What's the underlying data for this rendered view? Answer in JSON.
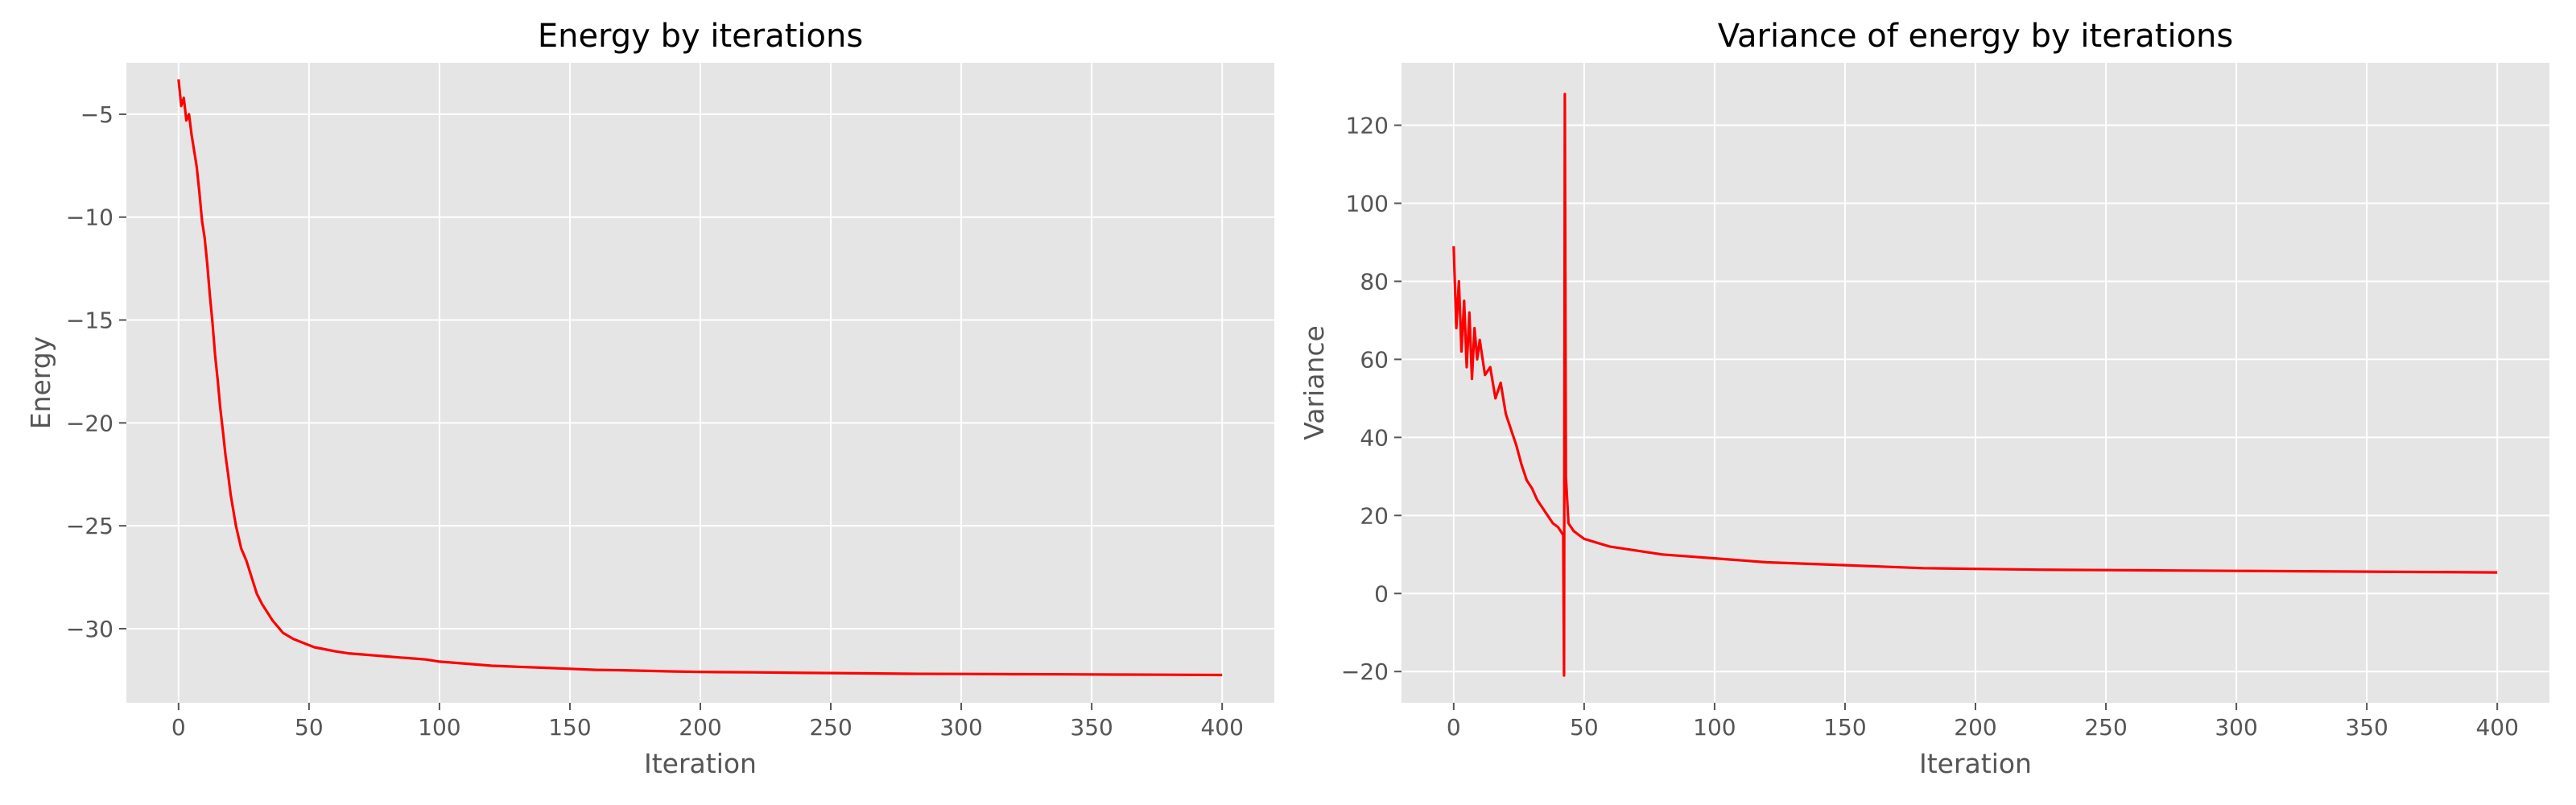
{
  "chart_data": [
    {
      "type": "line",
      "title": "Energy by iterations",
      "xlabel": "Iteration",
      "ylabel": "Energy",
      "xlim": [
        -20,
        420
      ],
      "ylim": [
        -33.6,
        -2.5
      ],
      "xticks": [
        0,
        50,
        100,
        150,
        200,
        250,
        300,
        350,
        400
      ],
      "yticks": [
        -30,
        -25,
        -20,
        -15,
        -10,
        -5
      ],
      "grid": true,
      "color": "#ff0000",
      "series": [
        {
          "x": [
            0,
            1,
            2,
            3,
            4,
            5,
            6,
            7,
            8,
            9,
            10,
            11,
            12,
            13,
            14,
            15,
            16,
            17,
            18,
            19,
            20,
            22,
            24,
            26,
            28,
            30,
            32,
            34,
            36,
            38,
            40,
            44,
            48,
            52,
            56,
            60,
            65,
            70,
            75,
            80,
            85,
            90,
            95,
            100,
            110,
            120,
            130,
            140,
            150,
            160,
            170,
            180,
            190,
            200,
            220,
            240,
            260,
            280,
            300,
            320,
            340,
            360,
            380,
            400
          ],
          "y": [
            -3.3,
            -4.6,
            -4.2,
            -5.3,
            -5.0,
            -6.0,
            -6.8,
            -7.6,
            -8.8,
            -10.2,
            -11.0,
            -12.3,
            -13.8,
            -15.1,
            -16.7,
            -17.9,
            -19.3,
            -20.4,
            -21.6,
            -22.5,
            -23.5,
            -25.0,
            -26.1,
            -26.7,
            -27.5,
            -28.3,
            -28.8,
            -29.2,
            -29.6,
            -29.9,
            -30.2,
            -30.5,
            -30.7,
            -30.9,
            -31.0,
            -31.1,
            -31.2,
            -31.25,
            -31.3,
            -31.35,
            -31.4,
            -31.45,
            -31.5,
            -31.6,
            -31.7,
            -31.8,
            -31.85,
            -31.9,
            -31.95,
            -32.0,
            -32.02,
            -32.05,
            -32.08,
            -32.1,
            -32.12,
            -32.15,
            -32.17,
            -32.19,
            -32.2,
            -32.21,
            -32.22,
            -32.23,
            -32.24,
            -32.25
          ]
        }
      ]
    },
    {
      "type": "line",
      "title": "Variance of energy by iterations",
      "xlabel": "Iteration",
      "ylabel": "Variance",
      "xlim": [
        -20,
        420
      ],
      "ylim": [
        -28,
        136
      ],
      "xticks": [
        0,
        50,
        100,
        150,
        200,
        250,
        300,
        350,
        400
      ],
      "yticks": [
        -20,
        0,
        20,
        40,
        60,
        80,
        100,
        120
      ],
      "grid": true,
      "color": "#ff0000",
      "series": [
        {
          "x": [
            0,
            1,
            2,
            3,
            4,
            5,
            6,
            7,
            8,
            9,
            10,
            12,
            14,
            16,
            18,
            20,
            22,
            24,
            26,
            28,
            30,
            32,
            34,
            36,
            38,
            40,
            41,
            42,
            42.3,
            42.6,
            43,
            44,
            46,
            48,
            50,
            55,
            60,
            70,
            80,
            90,
            100,
            120,
            140,
            160,
            180,
            200,
            225,
            250,
            275,
            300,
            325,
            350,
            375,
            400
          ],
          "y": [
            89,
            68,
            80,
            62,
            75,
            58,
            72,
            55,
            68,
            60,
            65,
            56,
            58,
            50,
            54,
            46,
            42,
            38,
            33,
            29,
            27,
            24,
            22,
            20,
            18,
            17,
            16,
            15,
            -21,
            128,
            30,
            18,
            16,
            15,
            14,
            13,
            12,
            11,
            10,
            9.5,
            9,
            8,
            7.5,
            7,
            6.5,
            6.3,
            6.1,
            6.0,
            5.9,
            5.8,
            5.7,
            5.6,
            5.5,
            5.4
          ]
        }
      ]
    }
  ]
}
